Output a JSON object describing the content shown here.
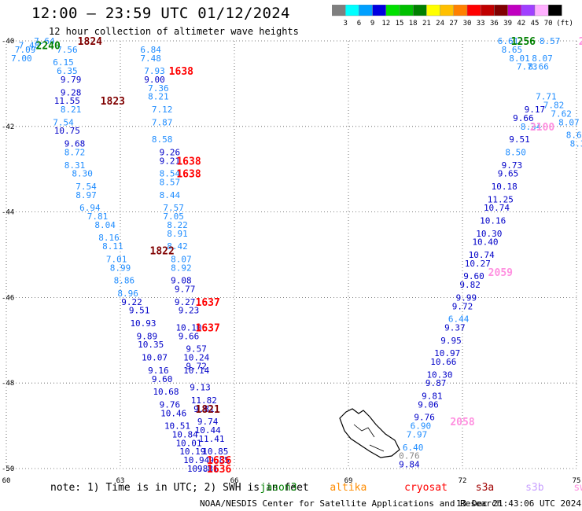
{
  "header": {
    "title": "12:00 – 23:59 UTC 01/12/2024",
    "subtitle": "12 hour collection of altimeter wave heights"
  },
  "colorbar": {
    "colors": [
      "#7f7f7f",
      "#00ffff",
      "#00a0ff",
      "#0000e0",
      "#00e000",
      "#00c000",
      "#008000",
      "#ffff00",
      "#ffc000",
      "#ff8000",
      "#ff0000",
      "#c00000",
      "#800000",
      "#c000c0",
      "#a040ff",
      "#ffb0ff",
      "#000000"
    ],
    "labels": [
      "3",
      "6",
      "9",
      "12",
      "15",
      "18",
      "21",
      "24",
      "27",
      "30",
      "33",
      "36",
      "39",
      "42",
      "45",
      "70"
    ],
    "unit": "(ft)"
  },
  "note": {
    "prefix": "note: 1) Time is in UTC; 2) SWH is in feet",
    "satellites": [
      {
        "name": "jason3",
        "color": "#008000"
      },
      {
        "name": "altika",
        "color": "#ff8c00"
      },
      {
        "name": "cryosat",
        "color": "#ff0000"
      },
      {
        "name": "s3a",
        "color": "#a00000"
      },
      {
        "name": "s3b",
        "color": "#c8a0ff"
      },
      {
        "name": "swot",
        "color": "#ff90e0"
      }
    ]
  },
  "footer": {
    "credit": "NOAA/NESDIS Center for Satellite Applications and Research",
    "timestamp": "13 Dec 21:43:06 UTC 2024"
  },
  "chart_data": {
    "type": "scatter",
    "xlim": [
      60,
      75
    ],
    "ylim": [
      -50,
      -40
    ],
    "xticks": [
      "60",
      "63",
      "66",
      "69",
      "72",
      "75"
    ],
    "yticks": [
      "-40",
      "-42",
      "-44",
      "-46",
      "-48",
      "-50"
    ],
    "grid": true,
    "time_labels": [
      {
        "text": "1824",
        "lon": 62.2,
        "lat": -40.0,
        "color": "#800000"
      },
      {
        "text": "2240",
        "lon": 61.1,
        "lat": -40.1,
        "color": "#008000"
      },
      {
        "text": "1638",
        "lon": 64.6,
        "lat": -40.7,
        "color": "#ff0000"
      },
      {
        "text": "1823",
        "lon": 62.8,
        "lat": -41.4,
        "color": "#800000"
      },
      {
        "text": "1638",
        "lon": 64.8,
        "lat": -42.8,
        "color": "#ff0000"
      },
      {
        "text": "1638",
        "lon": 64.8,
        "lat": -43.1,
        "color": "#ff0000"
      },
      {
        "text": "1822",
        "lon": 64.1,
        "lat": -44.9,
        "color": "#800000"
      },
      {
        "text": "1637",
        "lon": 65.3,
        "lat": -46.1,
        "color": "#ff0000"
      },
      {
        "text": "1637",
        "lon": 65.3,
        "lat": -46.7,
        "color": "#ff0000"
      },
      {
        "text": "1821",
        "lon": 65.3,
        "lat": -48.6,
        "color": "#800000"
      },
      {
        "text": "1636",
        "lon": 65.6,
        "lat": -49.8,
        "color": "#ff0000"
      },
      {
        "text": "1636",
        "lon": 65.6,
        "lat": -50.0,
        "color": "#ff0000"
      },
      {
        "text": "1256",
        "lon": 73.6,
        "lat": -40.0,
        "color": "#008000"
      },
      {
        "text": "2059",
        "lon": 73.0,
        "lat": -45.4,
        "color": "#ff90e0"
      },
      {
        "text": "2058",
        "lon": 72.0,
        "lat": -48.9,
        "color": "#ff90e0"
      },
      {
        "text": "2100",
        "lon": 74.1,
        "lat": -42.0,
        "color": "#ff90e0"
      },
      {
        "text": "210",
        "lon": 75.3,
        "lat": -40.0,
        "color": "#ff90e0"
      },
      {
        "text": "13",
        "lon": 75.4,
        "lat": -41.7,
        "color": "#008000"
      }
    ],
    "series": [
      {
        "name": "s3a",
        "points": [
          [
            61.0,
            -40.0,
            7.64
          ],
          [
            60.6,
            -40.1,
            7.48
          ],
          [
            60.5,
            -40.2,
            7.09
          ],
          [
            60.4,
            -40.4,
            7.0
          ],
          [
            61.6,
            -40.2,
            7.56
          ],
          [
            61.5,
            -40.5,
            6.15
          ],
          [
            61.6,
            -40.7,
            6.35
          ],
          [
            61.7,
            -40.9,
            9.79
          ],
          [
            61.7,
            -41.2,
            9.28
          ],
          [
            61.6,
            -41.4,
            11.55
          ],
          [
            61.7,
            -41.6,
            8.21
          ],
          [
            61.5,
            -41.9,
            7.54
          ],
          [
            61.6,
            -42.1,
            10.75
          ],
          [
            61.8,
            -42.4,
            9.68
          ],
          [
            61.8,
            -42.6,
            8.72
          ],
          [
            61.8,
            -42.9,
            8.31
          ],
          [
            62.0,
            -43.1,
            8.3
          ],
          [
            62.1,
            -43.4,
            7.54
          ],
          [
            62.1,
            -43.6,
            8.97
          ],
          [
            62.2,
            -43.9,
            6.94
          ],
          [
            62.4,
            -44.1,
            7.81
          ],
          [
            62.6,
            -44.3,
            8.04
          ],
          [
            62.7,
            -44.6,
            8.16
          ],
          [
            62.8,
            -44.8,
            8.11
          ],
          [
            62.9,
            -45.1,
            7.01
          ],
          [
            63.0,
            -45.3,
            8.99
          ],
          [
            63.1,
            -45.6,
            8.86
          ],
          [
            63.2,
            -45.9,
            8.96
          ],
          [
            63.3,
            -46.1,
            9.22
          ],
          [
            63.5,
            -46.3,
            9.51
          ],
          [
            63.6,
            -46.6,
            10.93
          ],
          [
            63.7,
            -46.9,
            9.89
          ],
          [
            63.8,
            -47.1,
            10.35
          ],
          [
            63.9,
            -47.4,
            10.07
          ],
          [
            64.0,
            -47.7,
            9.16
          ],
          [
            64.1,
            -47.9,
            9.6
          ],
          [
            64.2,
            -48.2,
            10.68
          ],
          [
            64.3,
            -48.5,
            9.76
          ],
          [
            64.4,
            -48.7,
            10.46
          ],
          [
            64.5,
            -49.0,
            10.51
          ],
          [
            64.7,
            -49.2,
            10.84
          ],
          [
            64.8,
            -49.4,
            10.01
          ],
          [
            64.9,
            -49.6,
            10.19
          ],
          [
            65.0,
            -49.8,
            10.94
          ],
          [
            65.1,
            -50.0,
            10.83
          ]
        ]
      },
      {
        "name": "cryosat",
        "points": [
          [
            63.8,
            -40.2,
            6.84
          ],
          [
            63.8,
            -40.4,
            7.48
          ],
          [
            63.9,
            -40.7,
            7.93
          ],
          [
            63.9,
            -40.9,
            9.0
          ],
          [
            64.0,
            -41.1,
            7.36
          ],
          [
            64.0,
            -41.3,
            8.21
          ],
          [
            64.1,
            -41.6,
            7.12
          ],
          [
            64.1,
            -41.9,
            7.87
          ],
          [
            64.1,
            -42.3,
            8.58
          ],
          [
            64.3,
            -42.6,
            9.26
          ],
          [
            64.3,
            -42.8,
            9.21
          ],
          [
            64.3,
            -43.1,
            8.54
          ],
          [
            64.3,
            -43.3,
            8.57
          ],
          [
            64.3,
            -43.6,
            8.44
          ],
          [
            64.4,
            -43.9,
            7.57
          ],
          [
            64.4,
            -44.1,
            7.05
          ],
          [
            64.5,
            -44.3,
            8.22
          ],
          [
            64.5,
            -44.5,
            8.91
          ],
          [
            64.5,
            -44.8,
            8.42
          ],
          [
            64.6,
            -45.1,
            8.07
          ],
          [
            64.6,
            -45.3,
            8.92
          ],
          [
            64.6,
            -45.6,
            9.08
          ],
          [
            64.7,
            -45.8,
            9.77
          ],
          [
            64.7,
            -46.1,
            9.27
          ],
          [
            64.8,
            -46.3,
            9.23
          ],
          [
            64.8,
            -46.7,
            10.1
          ],
          [
            64.8,
            -46.9,
            9.66
          ],
          [
            65.0,
            -47.2,
            9.57
          ],
          [
            65.0,
            -47.4,
            10.24
          ],
          [
            65.0,
            -47.6,
            9.72
          ],
          [
            65.0,
            -47.7,
            10.14
          ],
          [
            65.1,
            -48.1,
            9.13
          ],
          [
            65.2,
            -48.4,
            11.82
          ],
          [
            65.2,
            -48.6,
            9.81
          ],
          [
            65.3,
            -48.9,
            9.74
          ],
          [
            65.3,
            -49.1,
            10.44
          ],
          [
            65.4,
            -49.3,
            11.41
          ],
          [
            65.5,
            -49.6,
            10.85
          ],
          [
            65.6,
            -49.8,
            9.85
          ],
          [
            65.3,
            -50.0,
            9.81
          ]
        ]
      },
      {
        "name": "s3b",
        "points": [
          [
            73.2,
            -40.0,
            6.61
          ],
          [
            73.3,
            -40.2,
            8.65
          ],
          [
            73.5,
            -40.4,
            8.01
          ],
          [
            73.7,
            -40.6,
            7.73
          ],
          [
            74.0,
            -40.6,
            8.66
          ],
          [
            74.1,
            -40.4,
            8.07
          ],
          [
            74.3,
            -40.0,
            8.57
          ],
          [
            73.9,
            -41.6,
            9.17
          ],
          [
            74.2,
            -41.3,
            7.71
          ],
          [
            74.4,
            -41.5,
            7.82
          ],
          [
            74.6,
            -41.7,
            7.62
          ],
          [
            74.8,
            -41.9,
            8.07
          ],
          [
            75.0,
            -42.2,
            8.66
          ],
          [
            75.1,
            -42.4,
            8.35
          ],
          [
            73.8,
            -42.0,
            8.34
          ],
          [
            73.6,
            -41.8,
            9.66
          ],
          [
            73.5,
            -42.3,
            9.51
          ],
          [
            73.4,
            -42.6,
            8.5
          ],
          [
            73.3,
            -42.9,
            9.73
          ],
          [
            73.2,
            -43.1,
            9.65
          ],
          [
            73.1,
            -43.4,
            10.18
          ],
          [
            73.0,
            -43.7,
            11.25
          ],
          [
            72.9,
            -43.9,
            10.74
          ],
          [
            72.8,
            -44.2,
            10.16
          ],
          [
            72.7,
            -44.5,
            10.3
          ],
          [
            72.6,
            -44.7,
            10.4
          ],
          [
            72.5,
            -45.0,
            10.74
          ],
          [
            72.4,
            -45.2,
            10.27
          ],
          [
            72.3,
            -45.5,
            9.6
          ],
          [
            72.2,
            -45.7,
            9.82
          ],
          [
            72.1,
            -46.0,
            9.99
          ],
          [
            72.0,
            -46.2,
            9.72
          ],
          [
            71.9,
            -46.5,
            6.44
          ],
          [
            71.8,
            -46.7,
            9.37
          ],
          [
            71.7,
            -47.0,
            9.95
          ],
          [
            71.6,
            -47.3,
            10.97
          ],
          [
            71.5,
            -47.5,
            10.66
          ],
          [
            71.4,
            -47.8,
            10.3
          ],
          [
            71.3,
            -48.0,
            9.87
          ],
          [
            71.2,
            -48.3,
            9.81
          ],
          [
            71.1,
            -48.5,
            9.06
          ],
          [
            71.0,
            -48.8,
            9.76
          ],
          [
            70.9,
            -49.0,
            6.9
          ],
          [
            70.8,
            -49.2,
            7.97
          ],
          [
            70.7,
            -49.5,
            6.4
          ],
          [
            70.6,
            -49.9,
            9.84
          ]
        ]
      }
    ],
    "land_label": {
      "text": "0.76",
      "lon": 70.6,
      "lat": -49.7
    }
  }
}
